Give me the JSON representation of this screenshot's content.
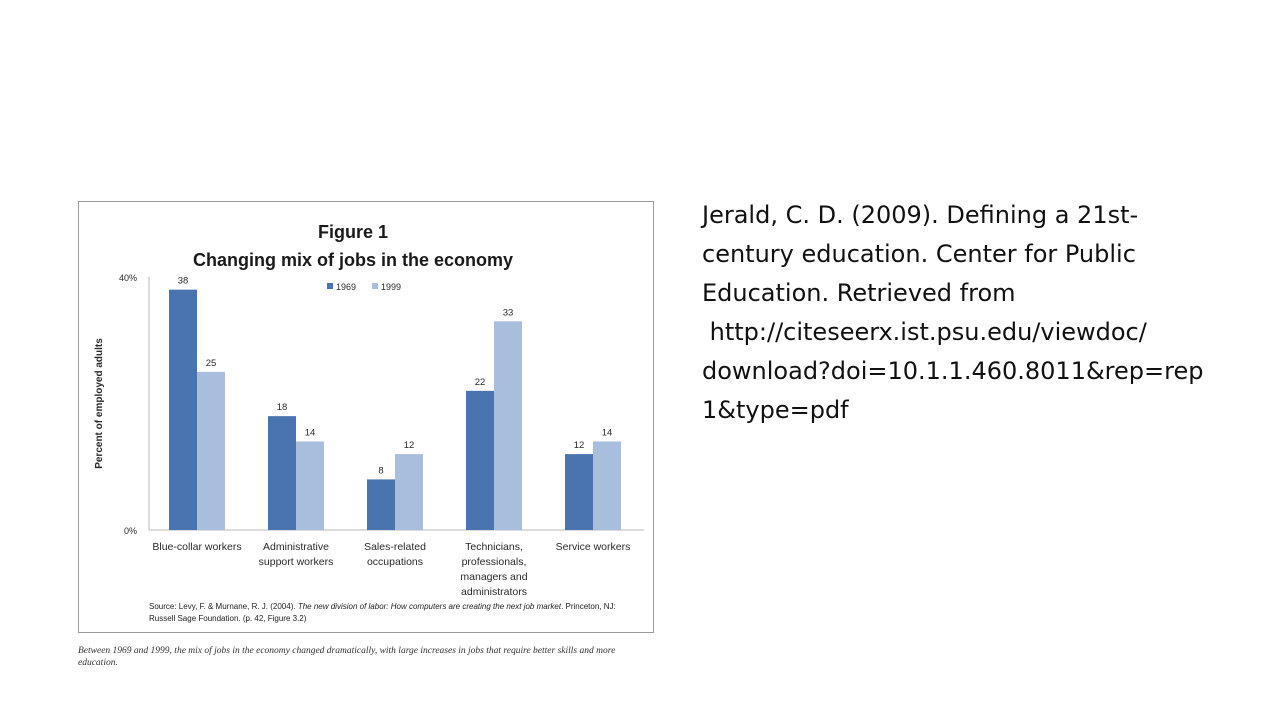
{
  "figure": {
    "source_prefix": "Source: Levy, F. & Murnane, R. J. (2004). ",
    "source_title": "The new division of labor: How computers are creating the next job market",
    "source_suffix": ". Princeton, NJ: Russell Sage Foundation. (p. 42, Figure 3.2)",
    "caption": "Between 1969 and 1999, the mix of jobs in the economy changed dramatically, with large increases in jobs that require better skills and more education."
  },
  "citation": {
    "lines": [
      "Jerald, C. D. (2009). Defining a 21st-",
      "century education. Center for Public",
      "Education. Retrieved from",
      " http://citeseerx.ist.psu.edu/viewdoc/",
      "download?doi=10.1.1.460.8011&rep=rep",
      "1&type=pdf"
    ]
  },
  "chart_data": {
    "type": "bar",
    "title": "Figure 1",
    "subtitle": "Changing mix of jobs in the economy",
    "ylabel": "Percent of employed adults",
    "xlabel": "",
    "ylim": [
      0,
      40
    ],
    "yticks": [
      0,
      40
    ],
    "ytick_labels": [
      "0%",
      "40%"
    ],
    "grid": false,
    "legend_position": "top-center",
    "categories": [
      [
        "Blue-collar workers"
      ],
      [
        "Administrative",
        "support workers"
      ],
      [
        "Sales-related",
        "occupations"
      ],
      [
        "Technicians,",
        "professionals,",
        "managers and",
        "administrators"
      ],
      [
        "Service workers"
      ]
    ],
    "series": [
      {
        "name": "1969",
        "color": "#4a74b0",
        "values": [
          38,
          18,
          8,
          22,
          12
        ]
      },
      {
        "name": "1999",
        "color": "#a9bddd",
        "values": [
          25,
          14,
          12,
          33,
          14
        ]
      }
    ]
  }
}
